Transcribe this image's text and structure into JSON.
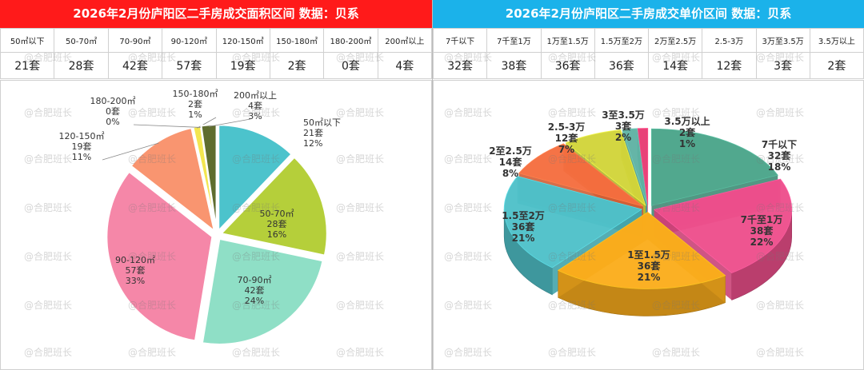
{
  "left": {
    "title": "2026年2月份庐阳区二手房成交面积区间 数据：贝系",
    "table": {
      "headers": [
        "50㎡以下",
        "50-70㎡",
        "70-90㎡",
        "90-120㎡",
        "120-150㎡",
        "150-180㎡",
        "180-200㎡",
        "200㎡以上"
      ],
      "values": [
        "21套",
        "28套",
        "42套",
        "57套",
        "19套",
        "2套",
        "0套",
        "4套"
      ]
    }
  },
  "right": {
    "title": "2026年2月份庐阳区二手房成交单价区间 数据：贝系",
    "table": {
      "headers": [
        "7千以下",
        "7千至1万",
        "1万至1.5万",
        "1.5万至2万",
        "2万至2.5万",
        "2.5-3万",
        "3万至3.5万",
        "3.5万以上"
      ],
      "values": [
        "32套",
        "38套",
        "36套",
        "36套",
        "14套",
        "12套",
        "3套",
        "2套"
      ]
    }
  },
  "watermark": "@合肥班长",
  "chart_data": [
    {
      "type": "pie",
      "title": "2026年2月份庐阳区二手房成交面积区间 数据：贝系",
      "start_angle_deg": 0,
      "slices": [
        {
          "label": "50㎡以下",
          "value": 21,
          "count_label": "21套",
          "pct_label": "12%",
          "color": "#4cc3cc"
        },
        {
          "label": "50-70㎡",
          "value": 28,
          "count_label": "28套",
          "pct_label": "16%",
          "color": "#b5cf3a"
        },
        {
          "label": "70-90㎡",
          "value": 42,
          "count_label": "42套",
          "pct_label": "24%",
          "color": "#8fdfc6"
        },
        {
          "label": "90-120㎡",
          "value": 57,
          "count_label": "57套",
          "pct_label": "33%",
          "color": "#f587a8"
        },
        {
          "label": "120-150㎡",
          "value": 19,
          "count_label": "19套",
          "pct_label": "11%",
          "color": "#f99570"
        },
        {
          "label": "150-180㎡",
          "value": 2,
          "count_label": "2套",
          "pct_label": "1%",
          "color": "#f3e650"
        },
        {
          "label": "180-200㎡",
          "value": 0,
          "count_label": "0套",
          "pct_label": "0%",
          "color": "#999999"
        },
        {
          "label": "200㎡以上",
          "value": 4,
          "count_label": "4套",
          "pct_label": "3%",
          "color": "#5f6d2e"
        }
      ]
    },
    {
      "type": "pie",
      "title": "2026年2月份庐阳区二手房成交单价区间 数据：贝系",
      "style": "3d",
      "start_angle_deg": 0,
      "slices": [
        {
          "label": "7千以下",
          "value": 32,
          "count_label": "32套",
          "pct_label": "18%",
          "color": "#4aa58a"
        },
        {
          "label": "7千至1万",
          "value": 38,
          "count_label": "38套",
          "pct_label": "22%",
          "color": "#ee4f8c"
        },
        {
          "label": "1至1.5万",
          "value": 36,
          "count_label": "36套",
          "pct_label": "21%",
          "color": "#fbad1c"
        },
        {
          "label": "1.5至2万",
          "value": 36,
          "count_label": "36套",
          "pct_label": "21%",
          "color": "#4fc1c9"
        },
        {
          "label": "2至2.5万",
          "value": 14,
          "count_label": "14套",
          "pct_label": "8%",
          "color": "#f56e3f"
        },
        {
          "label": "2.5-3万",
          "value": 12,
          "count_label": "12套",
          "pct_label": "7%",
          "color": "#d2d53a"
        },
        {
          "label": "3至3.5万",
          "value": 3,
          "count_label": "3套",
          "pct_label": "2%",
          "color": "#5fb3a4"
        },
        {
          "label": "3.5万以上",
          "value": 2,
          "count_label": "2套",
          "pct_label": "1%",
          "color": "#e83b73"
        }
      ]
    }
  ]
}
